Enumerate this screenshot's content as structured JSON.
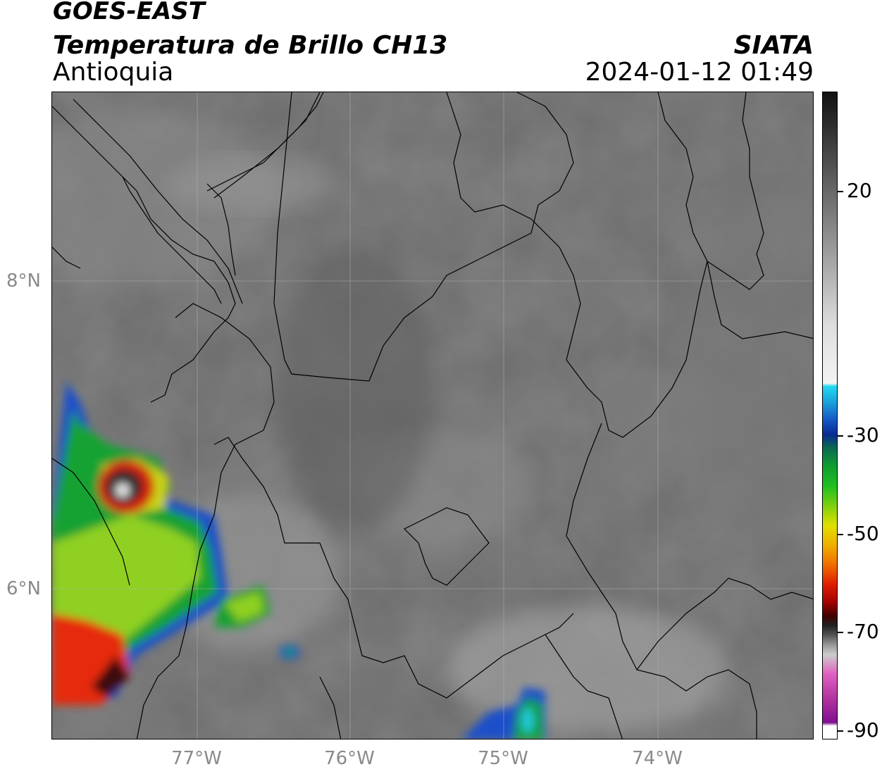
{
  "header": {
    "satellite": "GOES-EAST",
    "product": "Temperatura de Brillo CH13",
    "region": "Antioquia",
    "organization": "SIATA",
    "timestamp": "2024-01-12 01:49"
  },
  "map": {
    "lat_labels": [
      "8°N",
      "6°N"
    ],
    "lon_labels": [
      "77°W",
      "76°W",
      "75°W",
      "74°W"
    ],
    "extent": {
      "lon_min": -77.95,
      "lon_max": -73.0,
      "lat_min": 4.95,
      "lat_max": 9.2
    }
  },
  "colorbar": {
    "tick_labels": [
      "20",
      "-30",
      "-50",
      "-70",
      "-90"
    ],
    "tick_values": [
      20,
      -30,
      -50,
      -70,
      -90
    ],
    "range": [
      -90,
      40
    ]
  }
}
